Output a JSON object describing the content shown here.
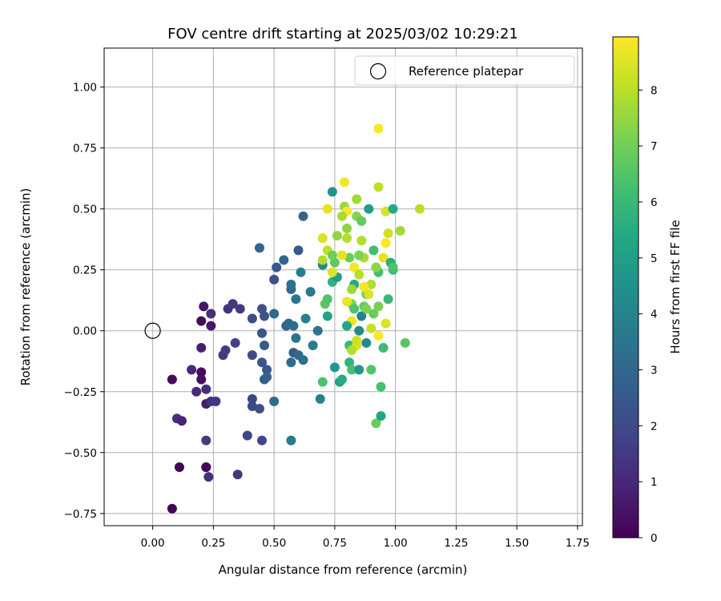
{
  "chart_data": {
    "type": "scatter",
    "title": "FOV centre drift starting at 2025/03/02 10:29:21",
    "xlabel": "Angular distance from reference (arcmin)",
    "ylabel": "Rotation from reference (arcmin)",
    "xlim": [
      -0.2,
      1.77
    ],
    "ylim": [
      -0.8,
      1.16
    ],
    "xticks": [
      "0.00",
      "0.25",
      "0.50",
      "0.75",
      "1.00",
      "1.25",
      "1.50",
      "1.75"
    ],
    "yticks": [
      "−0.75",
      "−0.50",
      "−0.25",
      "0.00",
      "0.25",
      "0.50",
      "0.75",
      "1.00"
    ],
    "grid": true,
    "legend": {
      "placement": "top-right",
      "entries": [
        {
          "label": "Reference platepar",
          "marker": "open-circle",
          "x": 0.0,
          "y": 0.0
        }
      ]
    },
    "colorbar": {
      "label": "Hours from first FF file",
      "range": [
        0,
        8.95
      ],
      "ticks": [
        "0",
        "1",
        "2",
        "3",
        "4",
        "5",
        "6",
        "7",
        "8"
      ],
      "colormap": "viridis"
    },
    "points": [
      [
        0.08,
        -0.73,
        0.05
      ],
      [
        0.11,
        -0.56,
        0.15
      ],
      [
        0.22,
        -0.56,
        0.1
      ],
      [
        0.22,
        -0.56,
        0.2
      ],
      [
        0.08,
        -0.2,
        0.2
      ],
      [
        0.2,
        -0.17,
        0.3
      ],
      [
        0.2,
        -0.2,
        0.35
      ],
      [
        0.2,
        0.04,
        0.25
      ],
      [
        0.21,
        0.1,
        0.5
      ],
      [
        0.24,
        0.02,
        0.6
      ],
      [
        0.2,
        -0.07,
        0.8
      ],
      [
        0.16,
        -0.16,
        1.0
      ],
      [
        0.18,
        -0.25,
        1.1
      ],
      [
        0.22,
        -0.24,
        1.2
      ],
      [
        0.22,
        -0.3,
        0.7
      ],
      [
        0.24,
        -0.29,
        1.3
      ],
      [
        0.26,
        -0.29,
        1.4
      ],
      [
        0.1,
        -0.36,
        1.2
      ],
      [
        0.12,
        -0.37,
        0.9
      ],
      [
        0.24,
        0.07,
        1.2
      ],
      [
        0.22,
        -0.45,
        1.6
      ],
      [
        0.23,
        -0.6,
        1.3
      ],
      [
        0.29,
        -0.1,
        1.5
      ],
      [
        0.3,
        -0.08,
        1.6
      ],
      [
        0.31,
        0.09,
        1.3
      ],
      [
        0.33,
        0.11,
        1.4
      ],
      [
        0.36,
        0.09,
        1.5
      ],
      [
        0.34,
        -0.05,
        1.7
      ],
      [
        0.35,
        -0.59,
        1.5
      ],
      [
        0.39,
        -0.43,
        1.8
      ],
      [
        0.41,
        -0.28,
        1.9
      ],
      [
        0.41,
        -0.31,
        2.0
      ],
      [
        0.44,
        -0.32,
        2.1
      ],
      [
        0.45,
        -0.45,
        1.9
      ],
      [
        0.41,
        -0.1,
        2.0
      ],
      [
        0.41,
        0.05,
        2.1
      ],
      [
        0.45,
        0.09,
        2.2
      ],
      [
        0.46,
        0.06,
        2.3
      ],
      [
        0.45,
        -0.01,
        2.4
      ],
      [
        0.46,
        -0.06,
        2.5
      ],
      [
        0.45,
        -0.13,
        2.4
      ],
      [
        0.47,
        -0.16,
        2.5
      ],
      [
        0.46,
        -0.2,
        2.6
      ],
      [
        0.47,
        -0.19,
        2.7
      ],
      [
        0.44,
        0.34,
        2.9
      ],
      [
        0.5,
        0.21,
        2.2
      ],
      [
        0.51,
        0.26,
        2.5
      ],
      [
        0.54,
        0.29,
        2.9
      ],
      [
        0.5,
        0.07,
        3.0
      ],
      [
        0.5,
        -0.29,
        3.1
      ],
      [
        0.55,
        0.02,
        2.8
      ],
      [
        0.56,
        0.03,
        3.1
      ],
      [
        0.58,
        0.02,
        3.2
      ],
      [
        0.59,
        -0.03,
        3.4
      ],
      [
        0.57,
        -0.13,
        3.2
      ],
      [
        0.58,
        -0.09,
        2.6
      ],
      [
        0.57,
        0.17,
        3.0
      ],
      [
        0.57,
        0.19,
        3.4
      ],
      [
        0.59,
        0.13,
        3.5
      ],
      [
        0.6,
        -0.1,
        3.0
      ],
      [
        0.57,
        -0.45,
        3.7
      ],
      [
        0.6,
        0.33,
        2.5
      ],
      [
        0.61,
        0.24,
        3.8
      ],
      [
        0.62,
        0.47,
        2.9
      ],
      [
        0.62,
        -0.12,
        3.3
      ],
      [
        0.63,
        0.05,
        3.9
      ],
      [
        0.65,
        0.16,
        3.6
      ],
      [
        0.66,
        -0.06,
        3.7
      ],
      [
        0.68,
        0.0,
        3.4
      ],
      [
        0.69,
        -0.28,
        3.9
      ],
      [
        0.7,
        0.27,
        4.2
      ],
      [
        0.7,
        -0.21,
        6.4
      ],
      [
        0.71,
        0.11,
        6.6
      ],
      [
        0.72,
        0.13,
        6.5
      ],
      [
        0.72,
        0.06,
        5.2
      ],
      [
        0.72,
        0.5,
        8.6
      ],
      [
        0.74,
        0.57,
        4.5
      ],
      [
        0.74,
        0.2,
        5.7
      ],
      [
        0.75,
        -0.15,
        4.8
      ],
      [
        0.76,
        0.22,
        5.0
      ],
      [
        0.77,
        -0.21,
        5.1
      ],
      [
        0.78,
        -0.2,
        5.5
      ],
      [
        0.79,
        0.61,
        8.8
      ],
      [
        0.79,
        0.51,
        7.6
      ],
      [
        0.8,
        0.42,
        7.4
      ],
      [
        0.8,
        0.38,
        8.0
      ],
      [
        0.81,
        0.3,
        6.9
      ],
      [
        0.81,
        -0.06,
        6.0
      ],
      [
        0.81,
        -0.13,
        5.8
      ],
      [
        0.82,
        -0.16,
        6.3
      ],
      [
        0.82,
        0.04,
        8.7
      ],
      [
        0.82,
        0.11,
        7.3
      ],
      [
        0.83,
        0.19,
        5.5
      ],
      [
        0.83,
        0.26,
        8.8
      ],
      [
        0.84,
        0.47,
        7.3
      ],
      [
        0.84,
        0.54,
        7.7
      ],
      [
        0.84,
        -0.06,
        8.4
      ],
      [
        0.85,
        -0.16,
        4.7
      ],
      [
        0.85,
        0.0,
        4.2
      ],
      [
        0.86,
        0.06,
        3.9
      ],
      [
        0.86,
        0.37,
        7.9
      ],
      [
        0.87,
        0.3,
        7.8
      ],
      [
        0.87,
        0.1,
        6.8
      ],
      [
        0.88,
        0.15,
        7.0
      ],
      [
        0.88,
        -0.05,
        4.2
      ],
      [
        0.89,
        0.5,
        4.9
      ],
      [
        0.9,
        0.01,
        8.2
      ],
      [
        0.9,
        -0.16,
        6.5
      ],
      [
        0.9,
        0.19,
        7.9
      ],
      [
        0.91,
        0.33,
        6.2
      ],
      [
        0.92,
        -0.38,
        6.9
      ],
      [
        0.93,
        0.83,
        8.9
      ],
      [
        0.93,
        0.59,
        8.1
      ],
      [
        0.93,
        0.24,
        6.2
      ],
      [
        0.93,
        0.1,
        7.1
      ],
      [
        0.93,
        -0.02,
        8.9
      ],
      [
        0.94,
        -0.23,
        6.3
      ],
      [
        0.94,
        -0.35,
        5.2
      ],
      [
        0.95,
        0.3,
        8.6
      ],
      [
        0.95,
        -0.07,
        6.1
      ],
      [
        0.96,
        0.49,
        8.4
      ],
      [
        0.96,
        0.36,
        8.9
      ],
      [
        0.96,
        0.03,
        8.5
      ],
      [
        0.97,
        0.4,
        8.3
      ],
      [
        0.97,
        0.13,
        6.0
      ],
      [
        0.98,
        0.28,
        5.6
      ],
      [
        0.99,
        0.5,
        5.4
      ],
      [
        0.99,
        0.25,
        6.0
      ],
      [
        0.99,
        0.26,
        6.4
      ],
      [
        1.02,
        0.41,
        7.7
      ],
      [
        1.04,
        -0.05,
        6.6
      ],
      [
        1.1,
        0.5,
        8.0
      ],
      [
        0.7,
        0.38,
        8.4
      ],
      [
        0.72,
        0.33,
        8.1
      ],
      [
        0.74,
        0.24,
        8.5
      ],
      [
        0.78,
        0.31,
        8.6
      ],
      [
        0.8,
        0.12,
        8.7
      ],
      [
        0.82,
        -0.08,
        7.9
      ],
      [
        0.84,
        -0.04,
        8.3
      ],
      [
        0.85,
        0.23,
        8.0
      ],
      [
        0.87,
        0.18,
        8.8
      ],
      [
        0.89,
        0.15,
        8.5
      ],
      [
        0.76,
        0.39,
        7.5
      ],
      [
        0.8,
        0.49,
        8.9
      ],
      [
        0.86,
        0.45,
        6.8
      ],
      [
        0.88,
        0.09,
        7.2
      ],
      [
        0.91,
        0.07,
        6.9
      ],
      [
        0.78,
        0.47,
        7.8
      ],
      [
        0.82,
        0.17,
        7.6
      ],
      [
        0.7,
        0.29,
        7.9
      ],
      [
        0.75,
        0.28,
        6.7
      ],
      [
        0.83,
        0.09,
        6.4
      ],
      [
        0.85,
        0.31,
        7.2
      ],
      [
        0.8,
        0.02,
        5.3
      ],
      [
        0.74,
        0.31,
        7.0
      ],
      [
        0.92,
        0.26,
        7.4
      ]
    ]
  }
}
